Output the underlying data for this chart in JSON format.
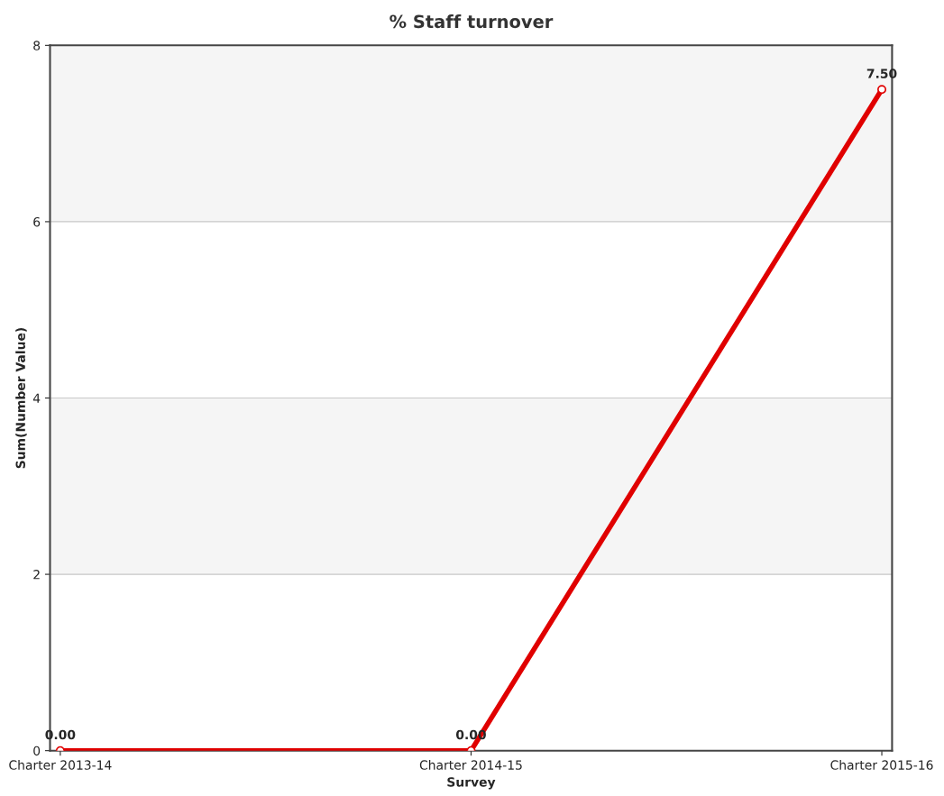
{
  "chart_data": {
    "type": "line",
    "title": "% Staff turnover",
    "xlabel": "Survey",
    "ylabel": "Sum(Number Value)",
    "categories": [
      "Charter 2013-14",
      "Charter 2014-15",
      "Charter 2015-16"
    ],
    "series": [
      {
        "color": "#e00000",
        "values": [
          0,
          0,
          7.5
        ],
        "value_labels": [
          "0.00",
          "0.00",
          "7.50"
        ]
      }
    ],
    "ylim": [
      0,
      8
    ],
    "yticks": [
      0,
      2,
      4,
      6,
      8
    ],
    "grid": "y",
    "marker": "circle",
    "line_style": "solid",
    "bands": [
      {
        "axis": "y",
        "from": 2,
        "to": 4,
        "color": "#f5f5f5"
      },
      {
        "axis": "y",
        "from": 6,
        "to": 8,
        "color": "#f5f5f5"
      }
    ]
  }
}
